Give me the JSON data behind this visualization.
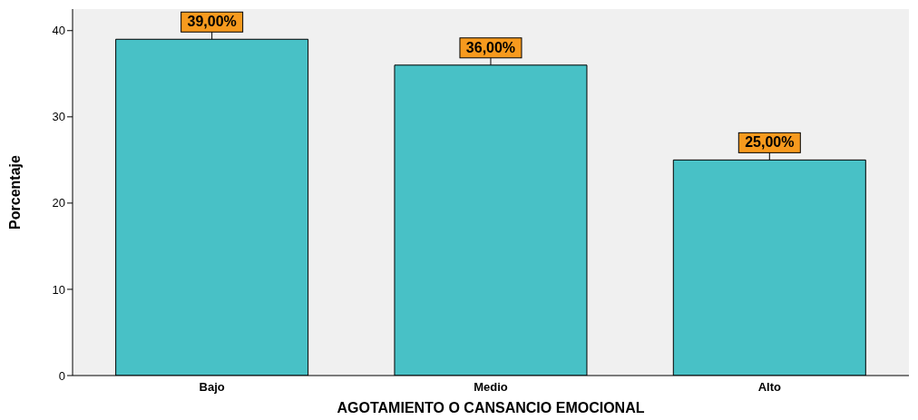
{
  "chart_data": {
    "type": "bar",
    "xlabel": "AGOTAMIENTO O CANSANCIO EMOCIONAL",
    "ylabel": "Porcentaje",
    "categories": [
      "Bajo",
      "Medio",
      "Alto"
    ],
    "values": [
      39,
      36,
      25
    ],
    "value_labels": [
      "39,00%",
      "36,00%",
      "25,00%"
    ],
    "color": "#48c1c6",
    "ylim": [
      0,
      42.5
    ],
    "yticks": [
      0,
      10,
      20,
      30,
      40
    ],
    "grid": false
  }
}
